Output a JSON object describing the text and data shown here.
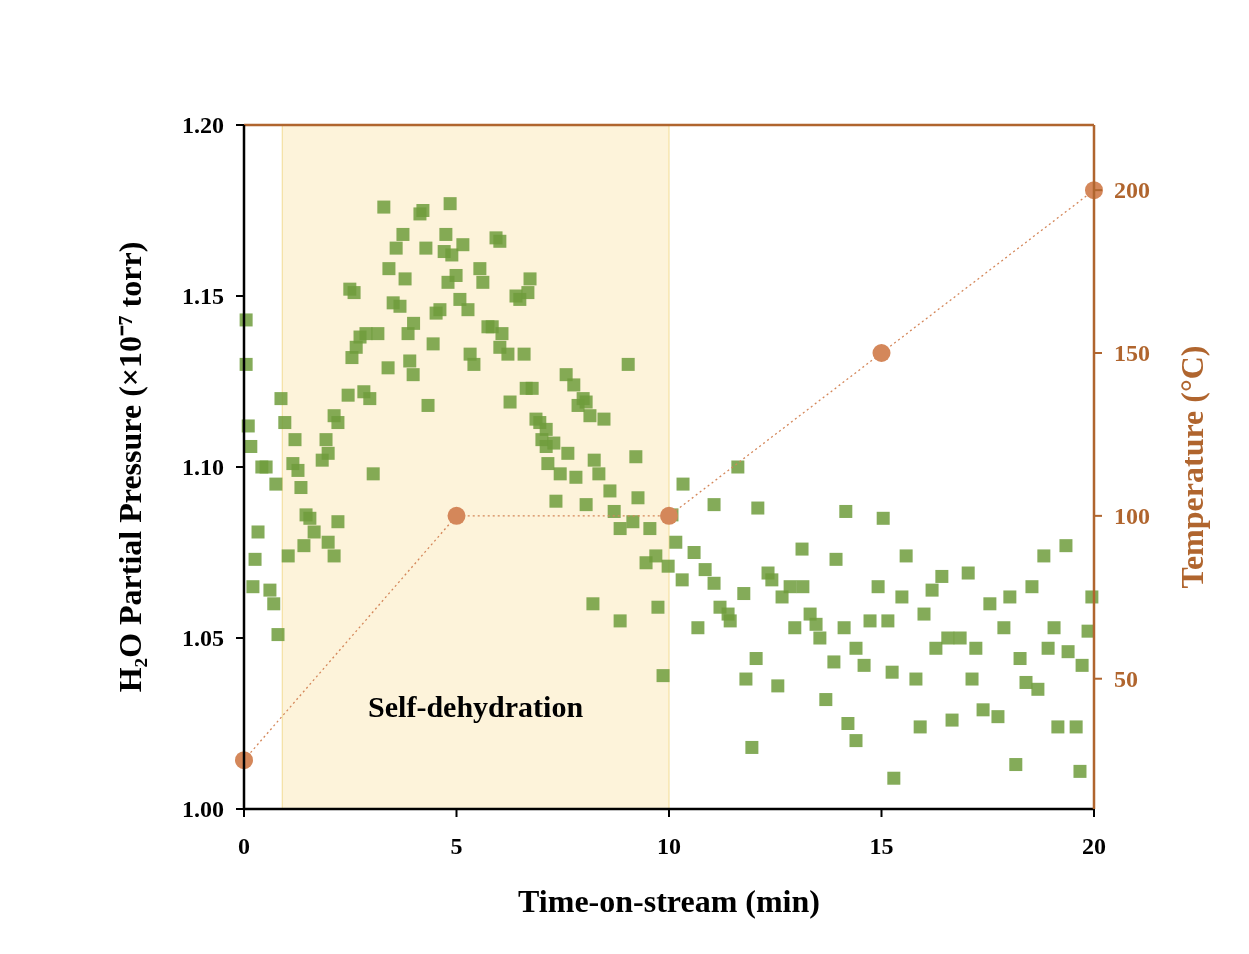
{
  "chart_data": {
    "type": "scatter",
    "xlabel": "Time-on-stream (min)",
    "ylabel": "H₂O Partial Pressure (×10⁻⁷ torr)",
    "y2label": "Temperature (°C)",
    "xlim": [
      0,
      20
    ],
    "xticks": [
      0,
      5,
      10,
      15,
      20
    ],
    "ylim": [
      1,
      1.2
    ],
    "yticks": [
      {
        "value": 1,
        "label": "1.00"
      },
      {
        "value": 1.05,
        "label": "1.05"
      },
      {
        "value": 1.1,
        "label": "1.10"
      },
      {
        "value": 1.15,
        "label": "1.15"
      },
      {
        "value": 1.2,
        "label": "1.20"
      }
    ],
    "y2lim": [
      10,
      220
    ],
    "y2ticks": [
      50,
      100,
      150,
      200
    ],
    "bands": [
      {
        "axis": "x",
        "from": 0.9,
        "to": 10,
        "label": "Self-dehydration",
        "color": "#fdf3da"
      }
    ],
    "series": [
      {
        "marker": "square",
        "color": "#6e9c3c",
        "x": [
          0.05,
          0.05,
          0.1,
          0.16,
          0.42,
          0.52,
          0.33,
          0.26,
          0.21,
          0.61,
          0.7,
          0.8,
          0.87,
          0.96,
          0.75,
          1.04,
          1.2,
          1.27,
          1.34,
          1.15,
          1.46,
          1.55,
          1.65,
          1.41,
          1.84,
          1.93,
          1.98,
          2.12,
          2.21,
          2.12,
          2.21,
          1.98,
          2.45,
          2.49,
          2.59,
          2.64,
          2.54,
          2.73,
          2.87,
          2.82,
          2.96,
          3.04,
          3.15,
          3.29,
          3.41,
          3.51,
          3.39,
          3.58,
          3.67,
          3.74,
          3.79,
          3.86,
          3.9,
          3.98,
          3.99,
          4.14,
          4.21,
          4.28,
          4.33,
          4.45,
          4.52,
          4.61,
          4.71,
          4.75,
          4.8,
          4.85,
          4.89,
          4.99,
          5.08,
          5.15,
          5.27,
          5.32,
          5.41,
          5.55,
          5.62,
          5.74,
          5.84,
          5.93,
          6.02,
          6.02,
          6.07,
          6.21,
          6.26,
          6.4,
          6.49,
          6.68,
          6.73,
          6.59,
          6.64,
          6.78,
          6.87,
          6.96,
          7.11,
          7.01,
          7.11,
          7.15,
          7.29,
          7.34,
          7.44,
          7.58,
          7.62,
          7.76,
          7.81,
          7.86,
          7.98,
          8.05,
          8.05,
          8.14,
          8.24,
          8.35,
          8.21,
          8.47,
          8.61,
          8.71,
          8.85,
          8.85,
          9.04,
          9.22,
          9.15,
          9.27,
          9.46,
          9.55,
          9.69,
          9.74,
          9.86,
          9.98,
          10.07,
          10.16,
          10.33,
          10.31,
          10.59,
          10.68,
          10.85,
          11.06,
          11.06,
          11.2,
          11.39,
          11.44,
          11.62,
          11.76,
          11.81,
          11.95,
          12.09,
          12.05,
          12.33,
          12.42,
          12.56,
          12.66,
          12.85,
          12.96,
          13.13,
          13.15,
          13.32,
          13.46,
          13.55,
          13.69,
          13.88,
          13.93,
          14.12,
          14.21,
          14.16,
          14.4,
          14.4,
          14.59,
          14.73,
          14.92,
          15.04,
          15.15,
          15.25,
          15.29,
          15.48,
          15.58,
          15.81,
          15.91,
          16.0,
          16.19,
          16.28,
          16.42,
          16.56,
          16.66,
          16.85,
          17.04,
          17.13,
          17.22,
          17.39,
          17.55,
          17.74,
          17.88,
          18.02,
          18.16,
          18.26,
          18.4,
          18.54,
          18.68,
          18.82,
          18.92,
          19.06,
          19.15,
          19.34,
          19.39,
          19.58,
          19.67,
          19.72,
          19.86,
          19.95
        ],
        "values": [
          1.143,
          1.13,
          1.112,
          1.106,
          1.1,
          1.1,
          1.081,
          1.073,
          1.065,
          1.064,
          1.06,
          1.051,
          1.12,
          1.113,
          1.095,
          1.074,
          1.108,
          1.099,
          1.094,
          1.101,
          1.086,
          1.085,
          1.081,
          1.077,
          1.102,
          1.108,
          1.104,
          1.115,
          1.113,
          1.074,
          1.084,
          1.078,
          1.121,
          1.152,
          1.151,
          1.135,
          1.132,
          1.138,
          1.139,
          1.122,
          1.12,
          1.098,
          1.139,
          1.176,
          1.158,
          1.148,
          1.129,
          1.164,
          1.147,
          1.168,
          1.155,
          1.139,
          1.131,
          1.127,
          1.142,
          1.174,
          1.175,
          1.164,
          1.118,
          1.136,
          1.145,
          1.146,
          1.163,
          1.168,
          1.154,
          1.177,
          1.162,
          1.156,
          1.149,
          1.165,
          1.146,
          1.133,
          1.13,
          1.158,
          1.154,
          1.141,
          1.141,
          1.167,
          1.166,
          1.135,
          1.139,
          1.133,
          1.119,
          1.15,
          1.149,
          1.151,
          1.155,
          1.133,
          1.123,
          1.123,
          1.114,
          1.113,
          1.111,
          1.108,
          1.106,
          1.101,
          1.107,
          1.09,
          1.098,
          1.127,
          1.104,
          1.124,
          1.097,
          1.118,
          1.12,
          1.119,
          1.089,
          1.115,
          1.102,
          1.098,
          1.06,
          1.114,
          1.093,
          1.087,
          1.082,
          1.055,
          1.13,
          1.103,
          1.084,
          1.091,
          1.072,
          1.082,
          1.074,
          1.059,
          1.039,
          1.071,
          1.086,
          1.078,
          1.095,
          1.067,
          1.075,
          1.053,
          1.07,
          1.089,
          1.066,
          1.059,
          1.057,
          1.055,
          1.1,
          1.063,
          1.038,
          1.018,
          1.088,
          1.044,
          1.069,
          1.067,
          1.036,
          1.062,
          1.065,
          1.053,
          1.076,
          1.065,
          1.057,
          1.054,
          1.05,
          1.032,
          1.043,
          1.073,
          1.053,
          1.025,
          1.087,
          1.047,
          1.02,
          1.042,
          1.055,
          1.065,
          1.085,
          1.055,
          1.04,
          1.009,
          1.062,
          1.074,
          1.038,
          1.024,
          1.057,
          1.064,
          1.047,
          1.068,
          1.05,
          1.026,
          1.05,
          1.069,
          1.038,
          1.047,
          1.029,
          1.06,
          1.027,
          1.053,
          1.062,
          1.013,
          1.044,
          1.037,
          1.065,
          1.035,
          1.074,
          1.047,
          1.053,
          1.024,
          1.077,
          1.046,
          1.024,
          1.011,
          1.042,
          1.052,
          1.062
        ]
      },
      {
        "type": "line",
        "axis": "y2",
        "marker": "circle",
        "line_style": "dotted",
        "color": "#d4875a",
        "x": [
          0,
          5,
          10,
          15,
          20
        ],
        "values": [
          25,
          100,
          100,
          150,
          200
        ]
      }
    ]
  }
}
